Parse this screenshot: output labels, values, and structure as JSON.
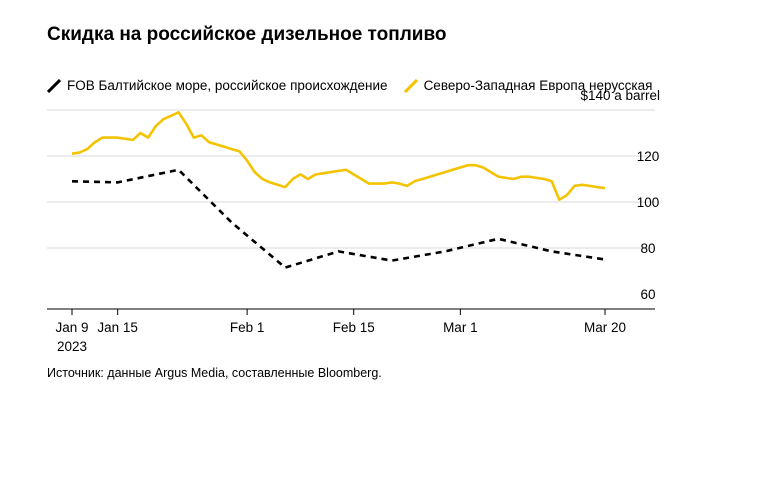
{
  "title": "Скидка на российское дизельное топливо",
  "source": "Источник: данные Argus Media, составленные Bloomberg.",
  "colors": {
    "russian": "#000000",
    "europe": "#f4c300",
    "grid": "#d9d9d9",
    "axis": "#000000"
  },
  "chart_data": {
    "type": "line",
    "title": "Скидка на российское дизельное топливо",
    "y_unit_label": "$140 a barrel",
    "ylim": [
      55,
      140
    ],
    "yticks": [
      60,
      80,
      100,
      120
    ],
    "ytick_labels": [
      "60",
      "80",
      "100",
      "120"
    ],
    "gridlines": [
      80,
      100,
      120,
      140
    ],
    "xlim": [
      0,
      70
    ],
    "xticks": [
      {
        "x": 0,
        "label": "Jan 9",
        "sublabel": "2023"
      },
      {
        "x": 6,
        "label": "Jan 15",
        "sublabel": ""
      },
      {
        "x": 23,
        "label": "Feb 1",
        "sublabel": ""
      },
      {
        "x": 37,
        "label": "Feb 15",
        "sublabel": ""
      },
      {
        "x": 51,
        "label": "Mar 1",
        "sublabel": ""
      },
      {
        "x": 70,
        "label": "Mar 20",
        "sublabel": ""
      }
    ],
    "series": [
      {
        "name": "FOB Балтийское море, российское происхождение",
        "style": "dashed",
        "x": [
          0,
          6,
          14,
          21,
          28,
          35,
          42,
          49,
          56,
          63,
          70
        ],
        "y": [
          109,
          108.5,
          114,
          91,
          71.5,
          78.5,
          74.5,
          78.5,
          84,
          78.5,
          75
        ]
      },
      {
        "name": "Северо-Западная Европа нерусская",
        "style": "solid",
        "x": [
          0,
          1,
          2,
          3,
          4,
          5,
          6,
          7,
          8,
          9,
          10,
          11,
          12,
          13,
          14,
          15,
          16,
          17,
          18,
          19,
          20,
          21,
          22,
          23,
          24,
          25,
          26,
          27,
          28,
          29,
          30,
          31,
          32,
          33,
          34,
          35,
          36,
          37,
          38,
          39,
          40,
          41,
          42,
          43,
          44,
          45,
          46,
          47,
          48,
          49,
          50,
          51,
          52,
          53,
          54,
          55,
          56,
          57,
          58,
          59,
          60,
          61,
          62,
          63,
          64,
          65,
          66,
          67,
          68,
          69,
          70
        ],
        "y": [
          121,
          121.5,
          123,
          126,
          128,
          128,
          128,
          127.5,
          127,
          130,
          128,
          133,
          136,
          137.5,
          139,
          134,
          128,
          129,
          126,
          125,
          124,
          123,
          122,
          118,
          113,
          110,
          108.5,
          107.5,
          106.5,
          110,
          112,
          110,
          112,
          112.5,
          113,
          113.5,
          114,
          112,
          110,
          108,
          108,
          108,
          108.5,
          108,
          107,
          109,
          110,
          111,
          112,
          113,
          114,
          115,
          116,
          116,
          115,
          113,
          111,
          110.5,
          110,
          111,
          111,
          110.5,
          110,
          109,
          101,
          103,
          107,
          107.5,
          107,
          106.5,
          106
        ]
      }
    ]
  }
}
